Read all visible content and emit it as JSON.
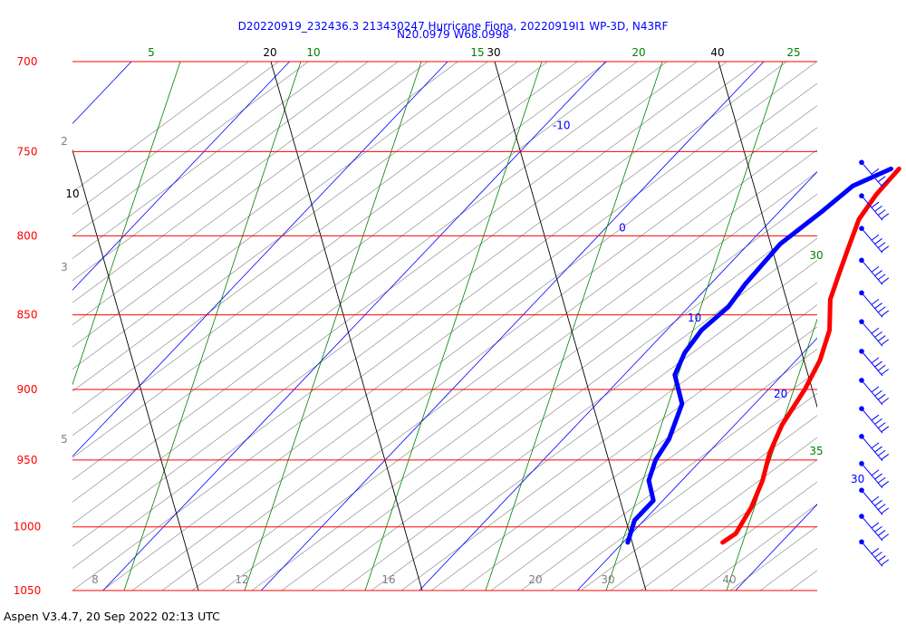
{
  "header": {
    "title_line1": "D20220919_232436.3 213430247 Hurricane Fiona, 20220919I1 WP-3D, N43RF",
    "title_line2": "N20.0979 W68.0998"
  },
  "footer": {
    "text": "Aspen V3.4.7, 20 Sep 2022  02:13 UTC"
  },
  "colors": {
    "isobar": "#ff0000",
    "isotherm": "#0000ff",
    "dry_adiabat": "#000000",
    "mixing_ratio": "#008000",
    "moist_adiabat": "#808080",
    "temperature_trace": "#ff0000",
    "dewpoint_trace": "#0000ff",
    "wind_barb": "#0000ff"
  },
  "chart_data": {
    "type": "skew-t log-p",
    "pressure_axis": {
      "unit": "hPa",
      "range": [
        1050,
        700
      ],
      "scale": "log",
      "ticks": [
        "700",
        "750",
        "800",
        "850",
        "900",
        "950",
        "1000",
        "1050"
      ]
    },
    "isotherm_labels": [
      "-10",
      "0",
      "10",
      "20",
      "30"
    ],
    "bottom_temperature_labels": [
      "8",
      "12",
      "16",
      "20",
      "30",
      "40"
    ],
    "dry_adiabat_labels": [
      "10",
      "20",
      "30",
      "40"
    ],
    "mixing_ratio_labels": [
      "5",
      "10",
      "15",
      "20",
      "25",
      "30",
      "35"
    ],
    "moist_adiabat_labels": [
      "2",
      "3",
      "5"
    ],
    "temperature_profile": [
      {
        "p": 760,
        "t": 15.0
      },
      {
        "p": 775,
        "t": 15.1
      },
      {
        "p": 790,
        "t": 15.5
      },
      {
        "p": 810,
        "t": 16.7
      },
      {
        "p": 825,
        "t": 17.6
      },
      {
        "p": 840,
        "t": 18.5
      },
      {
        "p": 860,
        "t": 20.3
      },
      {
        "p": 880,
        "t": 21.5
      },
      {
        "p": 900,
        "t": 22.3
      },
      {
        "p": 925,
        "t": 23.0
      },
      {
        "p": 945,
        "t": 23.9
      },
      {
        "p": 965,
        "t": 25.1
      },
      {
        "p": 985,
        "t": 26.0
      },
      {
        "p": 1005,
        "t": 26.6
      },
      {
        "p": 1012,
        "t": 26.3
      }
    ],
    "dewpoint_profile": [
      {
        "p": 760,
        "td": 14.5
      },
      {
        "p": 770,
        "td": 13.1
      },
      {
        "p": 785,
        "td": 12.7
      },
      {
        "p": 805,
        "td": 12.0
      },
      {
        "p": 830,
        "td": 12.2
      },
      {
        "p": 845,
        "td": 12.5
      },
      {
        "p": 860,
        "td": 12.2
      },
      {
        "p": 875,
        "td": 12.5
      },
      {
        "p": 890,
        "td": 13.2
      },
      {
        "p": 910,
        "td": 15.4
      },
      {
        "p": 935,
        "td": 16.7
      },
      {
        "p": 950,
        "td": 17.1
      },
      {
        "p": 965,
        "td": 17.9
      },
      {
        "p": 980,
        "td": 19.4
      },
      {
        "p": 995,
        "td": 19.4
      },
      {
        "p": 1012,
        "td": 20.3
      }
    ],
    "wind_levels_hpa": [
      770,
      790,
      810,
      830,
      851,
      870,
      890,
      910,
      930,
      950,
      970,
      990,
      1010,
      1030
    ]
  }
}
